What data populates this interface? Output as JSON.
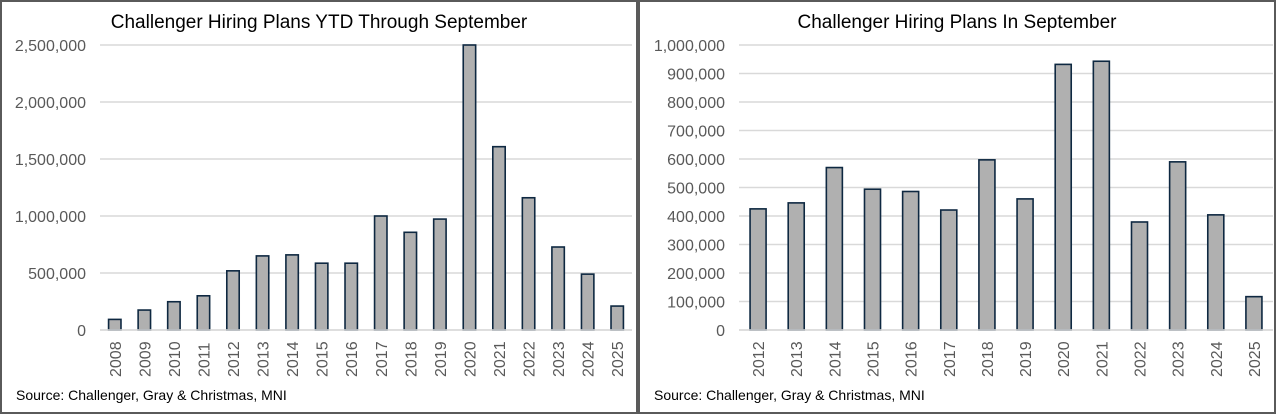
{
  "chart_data": [
    {
      "type": "bar",
      "title": "Challenger Hiring Plans YTD Through September",
      "source": "Source: Challenger, Gray & Christmas, MNI",
      "categories": [
        "2008",
        "2009",
        "2010",
        "2011",
        "2012",
        "2013",
        "2014",
        "2015",
        "2016",
        "2017",
        "2018",
        "2019",
        "2020",
        "2021",
        "2022",
        "2023",
        "2024",
        "2025"
      ],
      "values": [
        93000,
        175000,
        248000,
        300000,
        519000,
        650000,
        659000,
        586000,
        586000,
        1000000,
        857000,
        973000,
        2500000,
        1608000,
        1160000,
        728000,
        490000,
        210000
      ],
      "ylim": [
        0,
        2500000
      ],
      "yticks": [
        "0",
        "500,000",
        "1,000,000",
        "1,500,000",
        "2,000,000",
        "2,500,000"
      ],
      "ytick_values": [
        0,
        500000,
        1000000,
        1500000,
        2000000,
        2500000
      ],
      "grid": true,
      "bar_color": "#b0b0b0",
      "bar_edge_color": "#0e2841"
    },
    {
      "type": "bar",
      "title": "Challenger Hiring Plans In September",
      "source": "Source: Challenger, Gray & Christmas, MNI",
      "categories": [
        "2012",
        "2013",
        "2014",
        "2015",
        "2016",
        "2017",
        "2018",
        "2019",
        "2020",
        "2021",
        "2022",
        "2023",
        "2024",
        "2025"
      ],
      "values": [
        425000,
        446000,
        570000,
        494000,
        486000,
        421000,
        597000,
        460000,
        932000,
        943000,
        379000,
        590000,
        404000,
        117000
      ],
      "ylim": [
        0,
        1000000
      ],
      "yticks": [
        "0",
        "100,000",
        "200,000",
        "300,000",
        "400,000",
        "500,000",
        "600,000",
        "700,000",
        "800,000",
        "900,000",
        "1,000,000"
      ],
      "ytick_values": [
        0,
        100000,
        200000,
        300000,
        400000,
        500000,
        600000,
        700000,
        800000,
        900000,
        1000000
      ],
      "grid": true,
      "bar_color": "#b0b0b0",
      "bar_edge_color": "#0e2841"
    }
  ]
}
